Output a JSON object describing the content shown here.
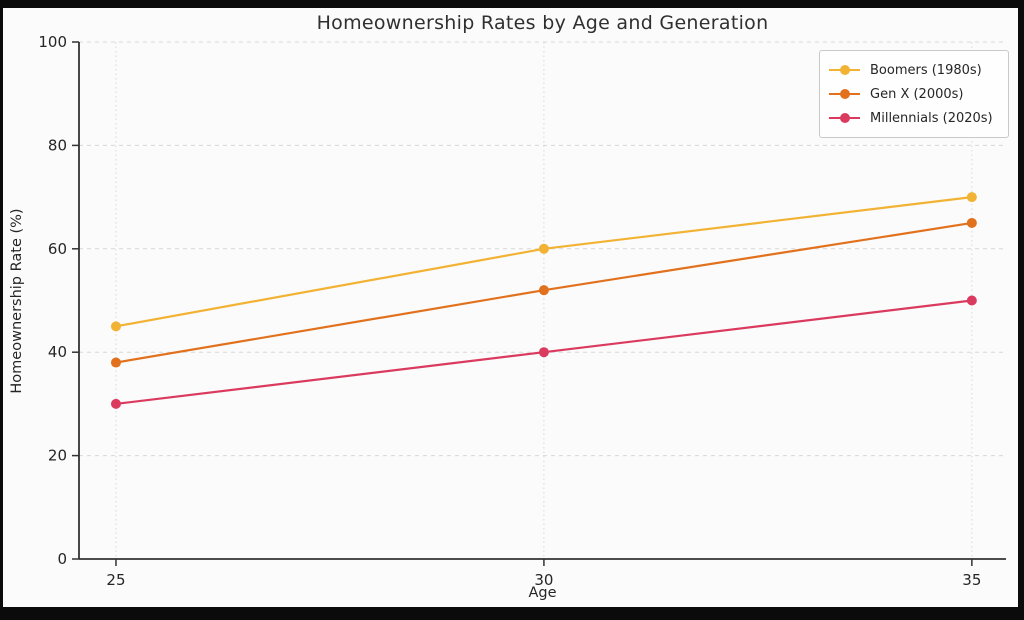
{
  "title": "Homeownership Rates by Age and Generation",
  "chart_data": {
    "type": "line",
    "title": "Homeownership Rates by Age and Generation",
    "xlabel": "Age",
    "ylabel": "Homeownership Rate (%)",
    "x": [
      25,
      30,
      35
    ],
    "xticks": [
      "25",
      "30",
      "35"
    ],
    "yticks": [
      "0",
      "20",
      "40",
      "60",
      "80",
      "100"
    ],
    "ytick_values": [
      0,
      20,
      40,
      60,
      80,
      100
    ],
    "ylim": [
      0,
      100
    ],
    "grid": true,
    "legend_position": "upper right",
    "series": [
      {
        "name": "Boomers (1980s)",
        "values": [
          45,
          60,
          70
        ],
        "color": "#F2B233"
      },
      {
        "name": "Gen X (2000s)",
        "values": [
          38,
          52,
          65
        ],
        "color": "#E2711D"
      },
      {
        "name": "Millennials (2020s)",
        "values": [
          30,
          40,
          50
        ],
        "color": "#DB3A5F"
      }
    ],
    "colors": {
      "grid": "#d8d8d8",
      "spine": "#333333",
      "text": "#262626",
      "background": "#fbfbfb",
      "frame": "#0b0b0b"
    }
  }
}
